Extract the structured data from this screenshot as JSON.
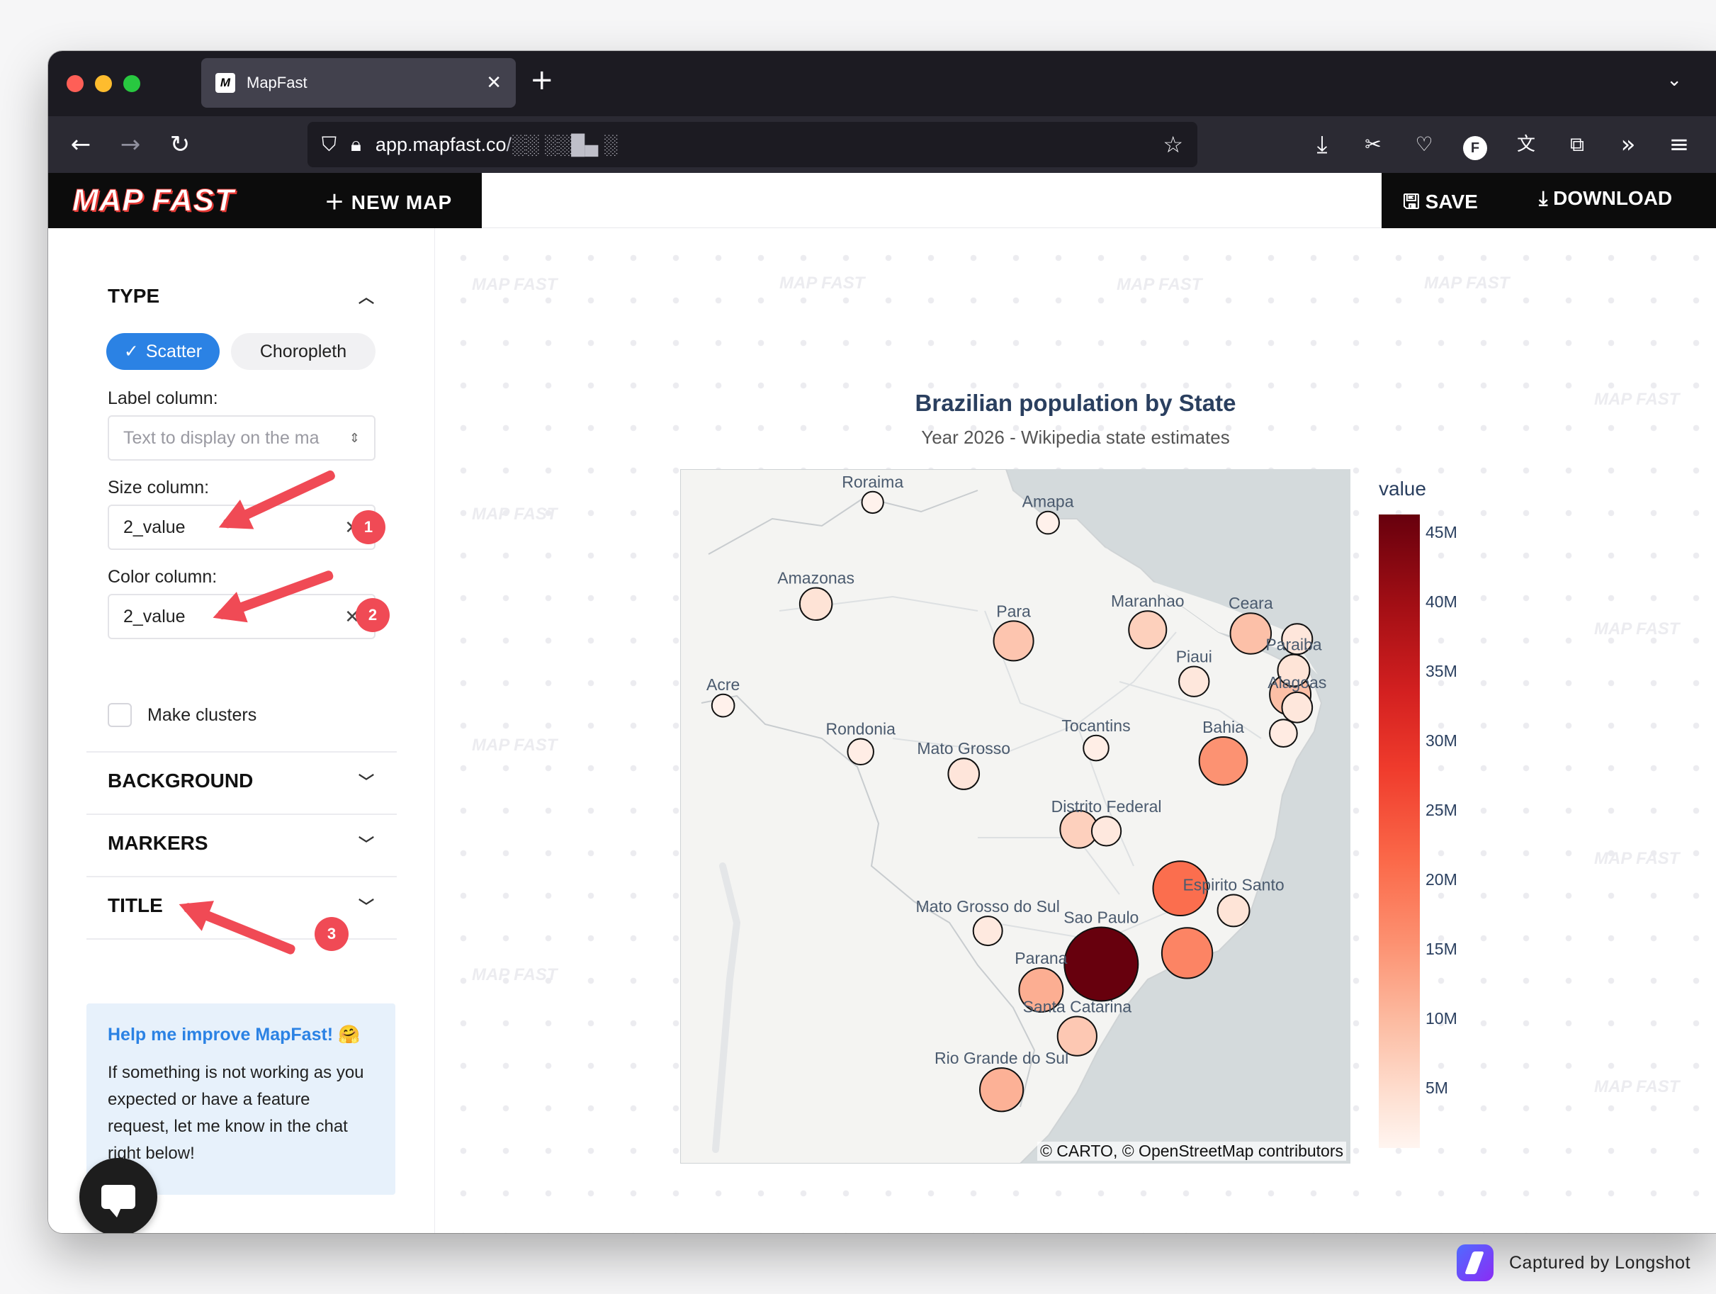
{
  "browser": {
    "tab_title": "MapFast",
    "tab_favicon": "M",
    "url_host": "app.mapfast.co",
    "url_path": "/░░ ░░█▄ ░"
  },
  "header": {
    "logo": "MAP FAST",
    "new_map": "NEW MAP",
    "save": "SAVE",
    "download": "DOWNLOAD"
  },
  "sidebar": {
    "type_heading": "TYPE",
    "type_options": [
      "Scatter",
      "Choropleth"
    ],
    "label_column": {
      "label": "Label column:",
      "placeholder": "Text to display on the ma"
    },
    "size_column": {
      "label": "Size column:",
      "value": "2_value"
    },
    "color_column": {
      "label": "Color column:",
      "value": "2_value"
    },
    "clusters_label": "Make clusters",
    "sections": [
      "BACKGROUND",
      "MARKERS",
      "TITLE"
    ],
    "help": {
      "title": "Help me improve MapFast! 🤗",
      "body": "If something is not working as you expected or have a feature request, let me know in the chat right below!"
    },
    "annotations": [
      "1",
      "2",
      "3"
    ]
  },
  "watermark": "MAP FAST",
  "chart_data": {
    "type": "scatter",
    "title": "Brazilian population by State",
    "subtitle": "Year 2026 - Wikipedia state estimates",
    "colorbar_title": "value",
    "colorbar_ticks": [
      "45M",
      "40M",
      "35M",
      "30M",
      "25M",
      "20M",
      "15M",
      "10M",
      "5M"
    ],
    "attribution": "© CARTO, © OpenStreetMap contributors",
    "points": [
      {
        "label": "Roraima",
        "lon": -61.3,
        "lat": 2.0,
        "value": 0.7
      },
      {
        "label": "Amapa",
        "lon": -51.1,
        "lat": 0.9,
        "value": 0.9
      },
      {
        "label": "Amazonas",
        "lon": -64.6,
        "lat": -3.5,
        "value": 4.3
      },
      {
        "label": "Para",
        "lon": -53.1,
        "lat": -5.5,
        "value": 8.6
      },
      {
        "label": "Maranhao",
        "lon": -45.3,
        "lat": -4.9,
        "value": 7.2
      },
      {
        "label": "Ceara",
        "lon": -39.3,
        "lat": -5.1,
        "value": 9.3
      },
      {
        "label": "",
        "lon": -36.6,
        "lat": -5.4,
        "value": 3.5
      },
      {
        "label": "Paraiba",
        "lon": -36.8,
        "lat": -7.1,
        "value": 4.1
      },
      {
        "label": "Piaui",
        "lon": -42.6,
        "lat": -7.7,
        "value": 3.3
      },
      {
        "label": "",
        "lon": -37.0,
        "lat": -8.4,
        "value": 9.5
      },
      {
        "label": "Alagoas",
        "lon": -36.6,
        "lat": -9.1,
        "value": 3.4
      },
      {
        "label": "",
        "lon": -37.4,
        "lat": -10.5,
        "value": 2.3
      },
      {
        "label": "Acre",
        "lon": -70.0,
        "lat": -9.0,
        "value": 0.9
      },
      {
        "label": "Bahia",
        "lon": -40.9,
        "lat": -12.0,
        "value": 15.0
      },
      {
        "label": "Tocantins",
        "lon": -48.3,
        "lat": -11.3,
        "value": 1.6
      },
      {
        "label": "Rondonia",
        "lon": -62.0,
        "lat": -11.5,
        "value": 1.8
      },
      {
        "label": "Mato Grosso",
        "lon": -56.0,
        "lat": -12.7,
        "value": 3.7
      },
      {
        "label": "Distrito Federal",
        "lon": -47.7,
        "lat": -15.8,
        "value": 3.0
      },
      {
        "label": "",
        "lon": -49.3,
        "lat": -15.7,
        "value": 7.1
      },
      {
        "label": "",
        "lon": -43.4,
        "lat": -18.9,
        "value": 21.3
      },
      {
        "label": "Espirito Santo",
        "lon": -40.3,
        "lat": -20.1,
        "value": 4.1
      },
      {
        "label": "Mato Grosso do Sul",
        "lon": -54.6,
        "lat": -21.2,
        "value": 2.9
      },
      {
        "label": "Sao Paulo",
        "lon": -48.0,
        "lat": -23.0,
        "value": 46.6
      },
      {
        "label": "",
        "lon": -43.0,
        "lat": -22.4,
        "value": 17.4
      },
      {
        "label": "Parana",
        "lon": -51.5,
        "lat": -24.4,
        "value": 11.6
      },
      {
        "label": "Santa Catarina",
        "lon": -49.4,
        "lat": -26.9,
        "value": 8.2
      },
      {
        "label": "Rio Grande do Sul",
        "lon": -53.8,
        "lat": -29.8,
        "value": 11.2
      }
    ]
  },
  "capture": {
    "text": "Captured by Longshot"
  }
}
